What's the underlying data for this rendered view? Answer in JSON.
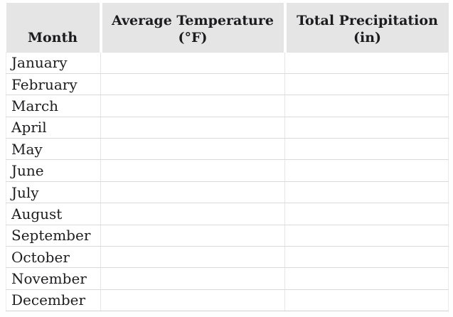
{
  "chart_data": {
    "type": "table",
    "columns": [
      "Month",
      "Average Temperature (°F)",
      "Total Precipitation (in)"
    ],
    "rows": [
      [
        "January",
        "",
        ""
      ],
      [
        "February",
        "",
        ""
      ],
      [
        "March",
        "",
        ""
      ],
      [
        "April",
        "",
        ""
      ],
      [
        "May",
        "",
        ""
      ],
      [
        "June",
        "",
        ""
      ],
      [
        "July",
        "",
        ""
      ],
      [
        "August",
        "",
        ""
      ],
      [
        "September",
        "",
        ""
      ],
      [
        "October",
        "",
        ""
      ],
      [
        "November",
        "",
        ""
      ],
      [
        "December",
        "",
        ""
      ]
    ]
  },
  "header": {
    "month": {
      "line1": "Month"
    },
    "avg_temp": {
      "line1": "Average Temperature",
      "line2": "(°F)"
    },
    "total_precip": {
      "line1": "Total Precipitation",
      "line2": "(in)"
    }
  },
  "colors": {
    "header_bg": "#e5e5e6",
    "text": "#1d1d1f",
    "row_line": "#d9d9d9",
    "column_line": "#e6e6e6",
    "background": "#ffffff"
  }
}
